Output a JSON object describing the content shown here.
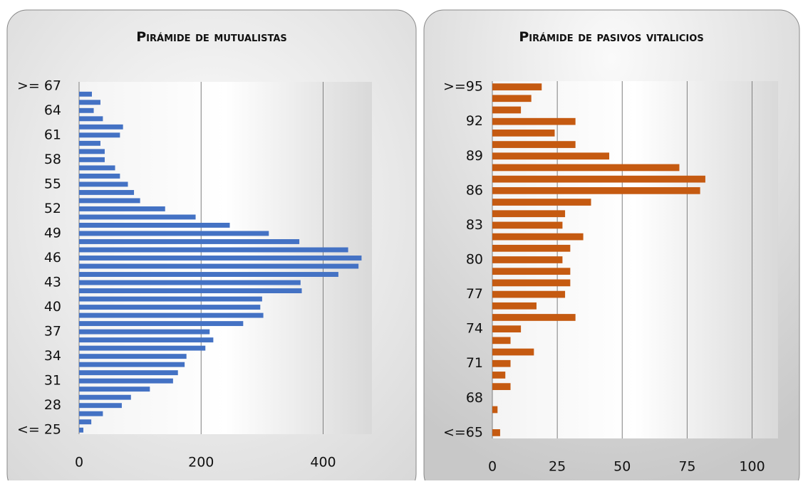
{
  "chart_data": [
    {
      "type": "bar",
      "orientation": "horizontal",
      "title": "Pirámide de mutualistas",
      "color": "#4472c4",
      "categories": [
        "<= 25",
        null,
        null,
        "28",
        null,
        null,
        "31",
        null,
        null,
        "34",
        null,
        null,
        "37",
        null,
        null,
        "40",
        null,
        null,
        "43",
        null,
        null,
        "46",
        null,
        null,
        "49",
        null,
        null,
        "52",
        null,
        null,
        "55",
        null,
        null,
        "58",
        null,
        null,
        "61",
        null,
        null,
        "64",
        null,
        null,
        ">= 67"
      ],
      "values": [
        7,
        20,
        39,
        70,
        85,
        116,
        154,
        162,
        173,
        176,
        207,
        220,
        214,
        269,
        302,
        297,
        300,
        365,
        363,
        425,
        458,
        463,
        441,
        361,
        311,
        247,
        191,
        141,
        100,
        90,
        80,
        67,
        59,
        42,
        42,
        35,
        67,
        72,
        39,
        24,
        35,
        21,
        0
      ],
      "xlim": [
        0,
        480
      ],
      "xticks": [
        0,
        200,
        400
      ],
      "grid": true
    },
    {
      "type": "bar",
      "orientation": "horizontal",
      "title": "Pirámide de pasivos vitalicios",
      "color": "#c55a11",
      "categories": [
        "<=65",
        null,
        null,
        "68",
        null,
        null,
        "71",
        null,
        null,
        "74",
        null,
        null,
        "77",
        null,
        null,
        "80",
        null,
        null,
        "83",
        null,
        null,
        "86",
        null,
        null,
        "89",
        null,
        null,
        "92",
        null,
        null,
        ">=95"
      ],
      "values": [
        3,
        0,
        2,
        0,
        7,
        5,
        7,
        16,
        7,
        11,
        32,
        17,
        28,
        30,
        30,
        27,
        30,
        35,
        27,
        28,
        38,
        80,
        82,
        72,
        45,
        32,
        24,
        32,
        11,
        15,
        19
      ],
      "xlim": [
        0,
        110
      ],
      "xticks": [
        0,
        25,
        50,
        75,
        100
      ],
      "grid": true
    }
  ]
}
